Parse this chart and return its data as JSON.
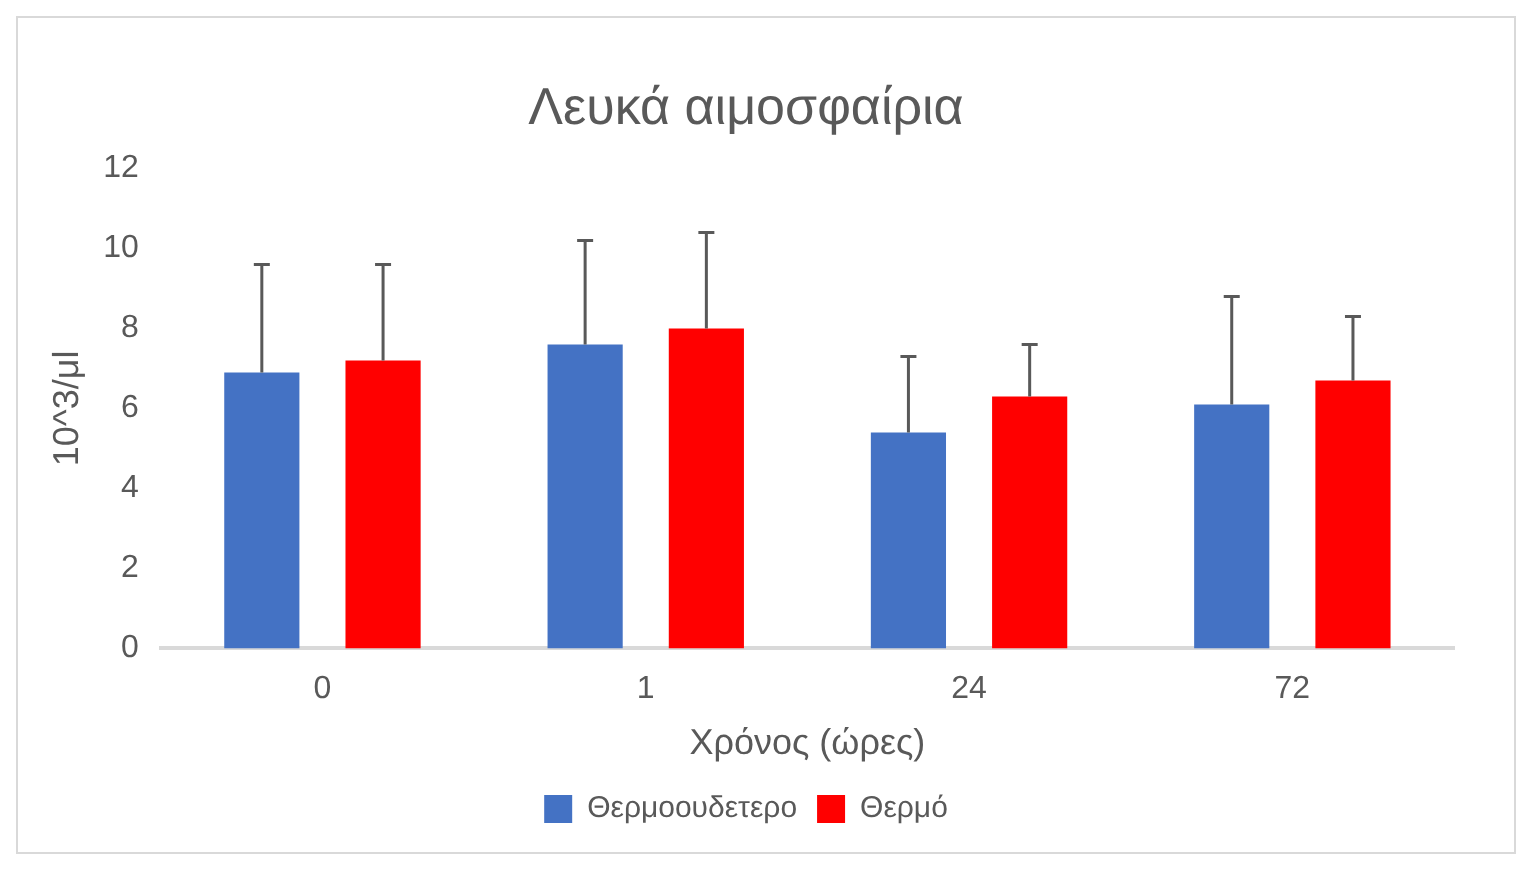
{
  "chart_data": {
    "type": "bar",
    "title": "Λευκά αιμοσφαίρια",
    "xlabel": "Χρόνος (ώρες)",
    "ylabel": "10^3/μl",
    "categories": [
      "0",
      "1",
      "24",
      "72"
    ],
    "series": [
      {
        "name": "Θερμοουδετερο",
        "color": "#4472c4",
        "values": [
          6.9,
          7.6,
          5.4,
          6.1
        ],
        "errors": [
          [
            6.9,
            9.6
          ],
          [
            7.6,
            10.2
          ],
          [
            5.4,
            7.3
          ],
          [
            6.1,
            8.8
          ]
        ]
      },
      {
        "name": "Θερμό",
        "color": "#ff0000",
        "values": [
          7.2,
          8.0,
          6.3,
          6.7
        ],
        "errors": [
          [
            7.2,
            9.6
          ],
          [
            8.0,
            10.4
          ],
          [
            6.3,
            7.6
          ],
          [
            6.7,
            8.3
          ]
        ]
      }
    ],
    "ylim": [
      0,
      12
    ],
    "yticks": [
      0,
      2,
      4,
      6,
      8,
      10,
      12
    ],
    "grid": false,
    "legend": "bottom"
  }
}
